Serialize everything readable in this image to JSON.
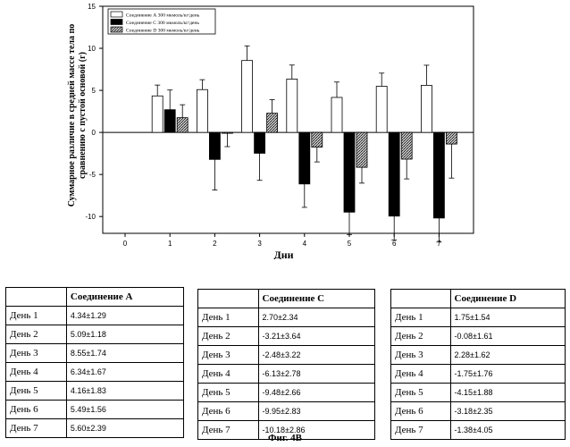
{
  "chart_data": {
    "type": "bar",
    "categories": [
      "1",
      "2",
      "3",
      "4",
      "5",
      "6",
      "7"
    ],
    "x_ticks": [
      "0",
      "1",
      "2",
      "3",
      "4",
      "5",
      "6",
      "7"
    ],
    "xlabel": "Дни",
    "ylabel": "Суммарное различие в средней массе тела по сравнению с пустой основой (г)",
    "ylim": [
      -12,
      15
    ],
    "y_ticks": [
      -10,
      -5,
      0,
      5,
      10,
      15
    ],
    "legend_position": "top-left",
    "series": [
      {
        "name": "Соединение А 300 мкмоль/кг/день",
        "fill": "#ffffff",
        "values": [
          4.34,
          5.09,
          8.55,
          6.34,
          4.16,
          5.49,
          5.6
        ],
        "errors": [
          1.29,
          1.18,
          1.74,
          1.67,
          1.83,
          1.56,
          2.39
        ]
      },
      {
        "name": "Соединение С 300 мкмоль/кг/день",
        "fill": "#000000",
        "values": [
          2.7,
          -3.21,
          -2.48,
          -6.13,
          -9.48,
          -9.95,
          -10.18
        ],
        "errors": [
          2.34,
          3.64,
          3.22,
          2.78,
          2.66,
          2.83,
          2.86
        ]
      },
      {
        "name": "Соединение D 300 мкмоль/кг/день",
        "fill": "#555555",
        "values": [
          1.75,
          -0.08,
          2.28,
          -1.75,
          -4.15,
          -3.18,
          -1.38
        ],
        "errors": [
          1.54,
          1.61,
          1.62,
          1.76,
          1.88,
          2.35,
          4.05
        ]
      }
    ]
  },
  "tables": [
    {
      "header": "Соединение А",
      "rows": [
        [
          "День 1",
          "4.34±1.29"
        ],
        [
          "День 2",
          "5.09±1.18"
        ],
        [
          "День 3",
          "8.55±1.74"
        ],
        [
          "День 4",
          "6.34±1.67"
        ],
        [
          "День 5",
          "4.16±1.83"
        ],
        [
          "День 6",
          "5.49±1.56"
        ],
        [
          "День 7",
          "5.60±2.39"
        ]
      ]
    },
    {
      "header": "Соединение С",
      "rows": [
        [
          "День 1",
          "2.70±2.34"
        ],
        [
          "День 2",
          "-3.21±3.64"
        ],
        [
          "День 3",
          "-2.48±3.22"
        ],
        [
          "День 4",
          "-6.13±2.78"
        ],
        [
          "День 5",
          "-9.48±2.66"
        ],
        [
          "День 6",
          "-9.95±2.83"
        ],
        [
          "День 7",
          "-10.18±2.86"
        ]
      ]
    },
    {
      "header": "Соединение D",
      "rows": [
        [
          "День 1",
          "1.75±1.54"
        ],
        [
          "День 2",
          "-0.08±1.61"
        ],
        [
          "День 3",
          "2.28±1.62"
        ],
        [
          "День 4",
          "-1.75±1.76"
        ],
        [
          "День 5",
          "-4.15±1.88"
        ],
        [
          "День 6",
          "-3.18±2.35"
        ],
        [
          "День 7",
          "-1.38±4.05"
        ]
      ]
    }
  ],
  "caption": "Фиг. 4В"
}
